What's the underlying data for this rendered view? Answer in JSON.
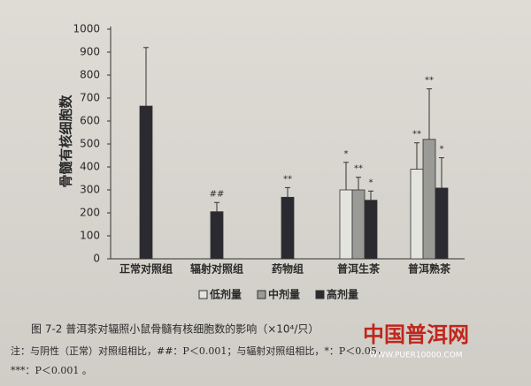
{
  "chart_data": {
    "type": "bar",
    "y_label": "骨髓有核细胞数",
    "categories": [
      "正常对照组",
      "辐射对照组",
      "药物组",
      "普洱生茶",
      "普洱熟茶"
    ],
    "series": [
      {
        "name": "低剂量",
        "color": "#e4e4de",
        "values": [
          null,
          null,
          null,
          300,
          390
        ],
        "errors": [
          null,
          null,
          null,
          120,
          115
        ],
        "annotations": [
          null,
          null,
          null,
          "*",
          "**"
        ]
      },
      {
        "name": "中剂量",
        "color": "#9a9a96",
        "values": [
          null,
          null,
          null,
          300,
          520
        ],
        "errors": [
          null,
          null,
          null,
          55,
          220
        ],
        "annotations": [
          null,
          null,
          null,
          "**",
          "**"
        ]
      },
      {
        "name": "高剂量",
        "color": "#2a2a30",
        "values": [
          665,
          205,
          268,
          255,
          308
        ],
        "errors": [
          255,
          40,
          42,
          40,
          132
        ],
        "annotations": [
          null,
          "##",
          "**",
          "*",
          "*"
        ]
      }
    ],
    "ylim": [
      0,
      1000
    ],
    "yticks": [
      0,
      100,
      200,
      300,
      400,
      500,
      600,
      700,
      800,
      900,
      1000
    ],
    "legend": "bottom",
    "caption": "图 7-2  普洱茶对辐照小鼠骨髓有核细胞数的影响（×10⁴/只）",
    "note_line1": "注：与阴性（正常）对照组相比，##：P＜0.001；与辐射对照组相比，*：P＜0.05，",
    "note_line2": "***：P＜0.001 。",
    "watermark": "中国普洱网",
    "watermark_url": "WWW.PUER10000.COM"
  }
}
